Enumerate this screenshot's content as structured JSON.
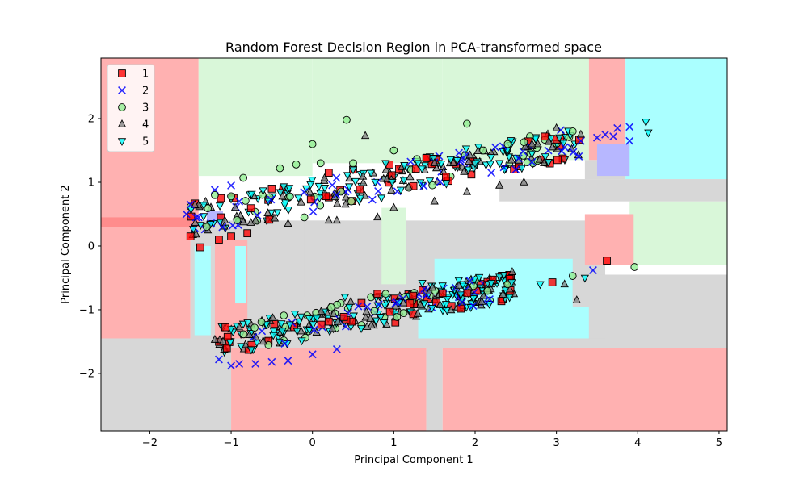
{
  "chart_data": {
    "type": "scatter",
    "title": "Random Forest Decision Region in PCA-transformed space",
    "xlabel": "Principal Component 1",
    "ylabel": "Principal Component 2",
    "xlim": [
      -2.6,
      5.1
    ],
    "ylim": [
      -2.9,
      2.95
    ],
    "xticks": [
      -2,
      -1,
      0,
      1,
      2,
      3,
      4,
      5
    ],
    "xtick_labels": [
      "−2",
      "−1",
      "0",
      "1",
      "2",
      "3",
      "4",
      "5"
    ],
    "yticks": [
      -2,
      -1,
      0,
      1,
      2
    ],
    "ytick_labels": [
      "−2",
      "−1",
      "0",
      "1",
      "2"
    ],
    "grid": false,
    "legend_position": "top-left",
    "series": [
      {
        "name": "1",
        "marker": "square",
        "color": "#ff0000",
        "points": [
          [
            -1.5,
            0.15
          ],
          [
            -1.38,
            -0.02
          ],
          [
            -1.15,
            0.1
          ],
          [
            -1.0,
            0.15
          ],
          [
            -0.8,
            0.2
          ],
          [
            0.2,
            1.15
          ],
          [
            0.5,
            1.2
          ],
          [
            1.4,
            1.38
          ],
          [
            0.8,
            -0.75
          ],
          [
            2.95,
            -0.57
          ],
          [
            3.62,
            -0.23
          ],
          [
            -0.5,
            0.9
          ],
          [
            1.2,
            -0.9
          ]
        ]
      },
      {
        "name": "2",
        "marker": "x",
        "color": "#0000ff",
        "points": [
          [
            -1.55,
            0.5
          ],
          [
            -1.5,
            0.65
          ],
          [
            -1.4,
            0.45
          ],
          [
            -1.2,
            0.88
          ],
          [
            -1.0,
            0.95
          ],
          [
            -0.9,
            0.7
          ],
          [
            -1.15,
            -1.78
          ],
          [
            -1.0,
            -1.88
          ],
          [
            -0.9,
            -1.85
          ],
          [
            -0.7,
            -1.85
          ],
          [
            -0.5,
            -1.82
          ],
          [
            -0.3,
            -1.8
          ],
          [
            0.0,
            -1.7
          ],
          [
            0.3,
            -1.62
          ],
          [
            2.2,
            1.15
          ],
          [
            2.5,
            1.2
          ],
          [
            2.7,
            1.32
          ],
          [
            2.9,
            1.5
          ],
          [
            3.1,
            1.55
          ],
          [
            3.3,
            1.65
          ],
          [
            3.5,
            1.7
          ],
          [
            3.6,
            1.75
          ],
          [
            3.7,
            1.72
          ],
          [
            3.75,
            1.85
          ],
          [
            3.9,
            1.87
          ],
          [
            3.9,
            1.65
          ],
          [
            3.45,
            -0.38
          ]
        ]
      },
      {
        "name": "3",
        "marker": "circle",
        "color": "#90ee90",
        "points": [
          [
            0.42,
            1.98
          ],
          [
            0.0,
            1.6
          ],
          [
            -0.85,
            1.07
          ],
          [
            -0.4,
            1.22
          ],
          [
            -0.2,
            1.28
          ],
          [
            0.1,
            1.3
          ],
          [
            0.5,
            1.3
          ],
          [
            -1.0,
            0.78
          ],
          [
            -1.2,
            0.8
          ],
          [
            1.9,
            1.92
          ],
          [
            2.6,
            1.63
          ],
          [
            3.2,
            1.8
          ],
          [
            2.4,
            1.6
          ],
          [
            3.96,
            -0.33
          ],
          [
            3.2,
            -0.47
          ],
          [
            2.4,
            -0.6
          ],
          [
            0.9,
            -0.75
          ],
          [
            -0.1,
            0.45
          ],
          [
            -1.3,
            0.3
          ],
          [
            1.0,
            1.5
          ],
          [
            2.1,
            1.5
          ]
        ]
      },
      {
        "name": "4",
        "marker": "triangle-up",
        "color": "#808080",
        "points": [
          [
            0.65,
            1.73
          ],
          [
            1.5,
            1.3
          ],
          [
            1.9,
            0.85
          ],
          [
            2.3,
            0.95
          ],
          [
            2.7,
            1.6
          ],
          [
            3.25,
            -0.85
          ],
          [
            3.1,
            -0.6
          ],
          [
            0.2,
            0.4
          ],
          [
            0.3,
            0.4
          ],
          [
            -0.3,
            0.35
          ],
          [
            -1.2,
            -1.47
          ],
          [
            -1.1,
            -1.5
          ],
          [
            2.95,
            1.55
          ],
          [
            3.0,
            1.85
          ],
          [
            3.3,
            1.75
          ],
          [
            2.2,
            -0.6
          ],
          [
            1.0,
            0.6
          ],
          [
            1.5,
            0.7
          ],
          [
            -0.7,
            0.4
          ],
          [
            0.8,
            0.45
          ],
          [
            2.6,
            1.0
          ]
        ]
      },
      {
        "name": "5",
        "marker": "triangle-down",
        "color": "#00ffff",
        "points": [
          [
            4.1,
            1.95
          ],
          [
            4.13,
            1.78
          ],
          [
            0.4,
            -0.8
          ],
          [
            1.35,
            -0.58
          ],
          [
            1.85,
            -0.6
          ],
          [
            2.45,
            -0.57
          ],
          [
            3.35,
            -0.5
          ],
          [
            2.8,
            -0.6
          ],
          [
            1.7,
            1.36
          ],
          [
            2.0,
            1.3
          ],
          [
            2.3,
            1.3
          ],
          [
            2.7,
            1.45
          ],
          [
            1.3,
            1.3
          ],
          [
            0.9,
            1.3
          ],
          [
            0.5,
            1.2
          ],
          [
            1.6,
            -0.62
          ],
          [
            2.2,
            -0.58
          ]
        ]
      }
    ],
    "clusters": [
      {
        "from": [
          -1.5,
          0.4
        ],
        "to": [
          3.3,
          1.65
        ],
        "width": 0.32
      },
      {
        "from": [
          -1.15,
          -1.5
        ],
        "to": [
          2.5,
          -0.6
        ],
        "width": 0.3
      }
    ]
  }
}
